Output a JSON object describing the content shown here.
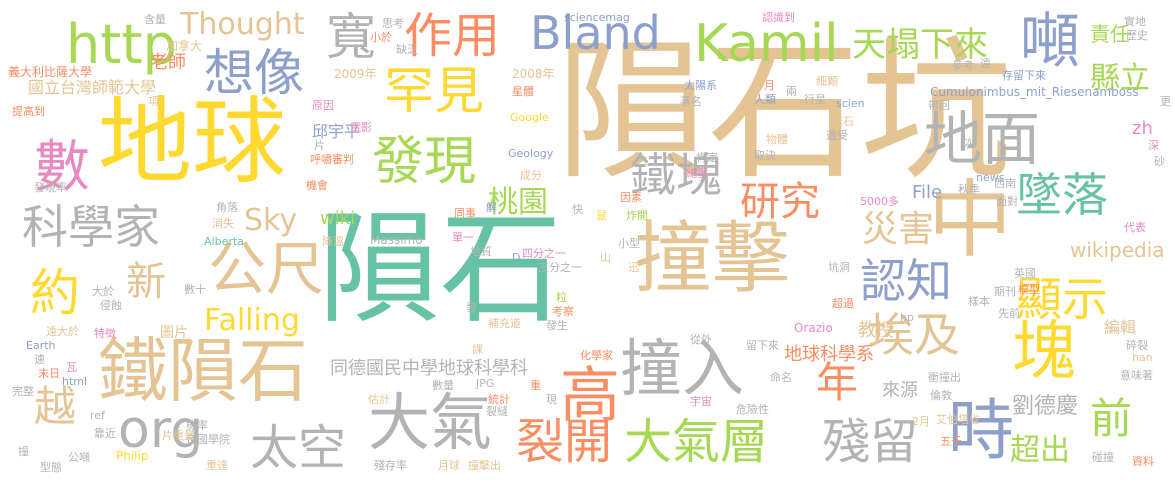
{
  "words": [
    {
      "text": "隕石",
      "color": "#66c2a5"
    },
    {
      "text": "隕石坑",
      "color": "#e5c494"
    },
    {
      "text": "地球",
      "color": "#ffd92f"
    },
    {
      "text": "撞擊",
      "color": "#e5c494"
    },
    {
      "text": "中",
      "color": "#e5c494"
    },
    {
      "text": "鐵隕石",
      "color": "#e5c494"
    },
    {
      "text": "撞入",
      "color": "#b3b3b3"
    },
    {
      "text": "大氣",
      "color": "#b3b3b3"
    },
    {
      "text": "時",
      "color": "#8da0cb"
    },
    {
      "text": "塊",
      "color": "#ffd92f"
    },
    {
      "text": "高",
      "color": "#fc8d62"
    },
    {
      "text": "公尺",
      "color": "#e5c494"
    },
    {
      "text": "http",
      "color": "#a6d854"
    },
    {
      "text": "Kamil",
      "color": "#a6d854"
    },
    {
      "text": "Bland",
      "color": "#8da0cb"
    },
    {
      "text": "數",
      "color": "#e78ac3"
    },
    {
      "text": "約",
      "color": "#ffd92f"
    },
    {
      "text": "org",
      "color": "#b3b3b3"
    },
    {
      "text": "地面",
      "color": "#b3b3b3"
    },
    {
      "text": "發現",
      "color": "#a6d854"
    },
    {
      "text": "罕見",
      "color": "#ffd92f"
    },
    {
      "text": "想像",
      "color": "#8da0cb"
    },
    {
      "text": "作用",
      "color": "#fc8d62"
    },
    {
      "text": "噸",
      "color": "#8da0cb"
    },
    {
      "text": "寬",
      "color": "#b3b3b3"
    },
    {
      "text": "太空",
      "color": "#b3b3b3"
    },
    {
      "text": "裂開",
      "color": "#fc8d62"
    },
    {
      "text": "大氣層",
      "color": "#a6d854"
    },
    {
      "text": "殘留",
      "color": "#b3b3b3"
    },
    {
      "text": "鐵塊",
      "color": "#b3b3b3"
    },
    {
      "text": "墜落",
      "color": "#66c2a5"
    },
    {
      "text": "顯示",
      "color": "#ffd92f"
    },
    {
      "text": "埃及",
      "color": "#e5c494"
    },
    {
      "text": "認知",
      "color": "#8da0cb"
    },
    {
      "text": "科學家",
      "color": "#b3b3b3"
    },
    {
      "text": "研究",
      "color": "#fc8d62"
    },
    {
      "text": "新",
      "color": "#e5c494"
    },
    {
      "text": "越",
      "color": "#e5c494"
    },
    {
      "text": "年",
      "color": "#fc8d62"
    },
    {
      "text": "前",
      "color": "#a6d854"
    },
    {
      "text": "天塌下來",
      "color": "#a6d854"
    },
    {
      "text": "災害",
      "color": "#e5c494"
    },
    {
      "text": "Thought",
      "color": "#e5c494"
    },
    {
      "text": "縣立",
      "color": "#a6d854"
    },
    {
      "text": "責任",
      "color": "#a6d854"
    },
    {
      "text": "桃園",
      "color": "#a6d854"
    },
    {
      "text": "Sky",
      "color": "#e5c494"
    },
    {
      "text": "Falling",
      "color": "#ffd92f"
    },
    {
      "text": "超出",
      "color": "#a6d854"
    },
    {
      "text": "劉德慶",
      "color": "#b3b3b3"
    },
    {
      "text": "國立台灣師範大學",
      "color": "#e5c494"
    },
    {
      "text": "同德國民中學地球科學科",
      "color": "#b3b3b3"
    },
    {
      "text": "地球科學系",
      "color": "#fc8d62"
    },
    {
      "text": "老師",
      "color": "#fc8d62"
    },
    {
      "text": "教授",
      "color": "#e5c494"
    },
    {
      "text": "來源",
      "color": "#b3b3b3"
    },
    {
      "text": "邱宇平",
      "color": "#8da0cb"
    },
    {
      "text": "wiki",
      "color": "#a6d854"
    },
    {
      "text": "wikipedia",
      "color": "#e5c494"
    },
    {
      "text": "File",
      "color": "#8da0cb"
    },
    {
      "text": "zh",
      "color": "#e78ac3"
    },
    {
      "text": "Cumulonimbus_mit_Riesenamboss",
      "color": "#8da0cb"
    },
    {
      "text": "sciencemag",
      "color": "#8da0cb"
    },
    {
      "text": "Geology",
      "color": "#8da0cb"
    },
    {
      "text": "Google",
      "color": "#ffd92f"
    },
    {
      "text": "2008年",
      "color": "#e5c494"
    },
    {
      "text": "2009年",
      "color": "#e5c494"
    },
    {
      "text": "加拿大",
      "color": "#e5c494"
    },
    {
      "text": "義大利比薩大學",
      "color": "#fc8d62"
    },
    {
      "text": "圖片",
      "color": "#e5c494"
    },
    {
      "text": "編輯",
      "color": "#e5c494"
    },
    {
      "text": "Massimo",
      "color": "#b3b3b3"
    },
    {
      "text": "Alberta",
      "color": "#66c2a5"
    },
    {
      "text": "Orazio",
      "color": "#e78ac3"
    },
    {
      "text": "Philip",
      "color": "#ffd92f"
    },
    {
      "text": "Earth",
      "color": "#8da0cb"
    },
    {
      "text": "html",
      "color": "#8da0cb"
    },
    {
      "text": "JPG",
      "color": "#b3b3b3"
    },
    {
      "text": "news",
      "color": "#8da0cb"
    },
    {
      "text": "scien",
      "color": "#8da0cb"
    },
    {
      "text": "ref",
      "color": "#b3b3b3"
    },
    {
      "text": "hp",
      "color": "#b3b3b3"
    },
    {
      "text": "han",
      "color": "#e5c494"
    },
    {
      "text": "D",
      "color": "#8da0cb"
    },
    {
      "text": "5000多",
      "color": "#e78ac3"
    },
    {
      "text": "含量",
      "color": "#b3b3b3"
    },
    {
      "text": "思考",
      "color": "#b3b3b3"
    },
    {
      "text": "小於",
      "color": "#fc8d62"
    },
    {
      "text": "缺乏",
      "color": "#b3b3b3"
    },
    {
      "text": "認識到",
      "color": "#e78ac3"
    },
    {
      "text": "實地",
      "color": "#b3b3b3"
    },
    {
      "text": "歷史",
      "color": "#b3b3b3"
    },
    {
      "text": "參考",
      "color": "#b3b3b3"
    },
    {
      "text": "遠",
      "color": "#b3b3b3"
    },
    {
      "text": "存留下來",
      "color": "#8da0cb"
    },
    {
      "text": "太陽系",
      "color": "#8da0cb"
    },
    {
      "text": "細顆",
      "color": "#e5c494"
    },
    {
      "text": "月",
      "color": "#fc8d62"
    },
    {
      "text": "兩",
      "color": "#b3b3b3"
    },
    {
      "text": "人類",
      "color": "#8da0cb"
    },
    {
      "text": "行星",
      "color": "#b3b3b3"
    },
    {
      "text": "著名",
      "color": "#b3b3b3"
    },
    {
      "text": "星體",
      "color": "#fc8d62"
    },
    {
      "text": "項",
      "color": "#e5c494"
    },
    {
      "text": "原因",
      "color": "#e78ac3"
    },
    {
      "text": "電影",
      "color": "#e78ac3"
    },
    {
      "text": "提高到",
      "color": "#fc8d62"
    },
    {
      "text": "片",
      "color": "#b3b3b3"
    },
    {
      "text": "呼嘯審判",
      "color": "#fc8d62"
    },
    {
      "text": "發現率",
      "color": "#b3b3b3"
    },
    {
      "text": "成分",
      "color": "#e5c494"
    },
    {
      "text": "機會",
      "color": "#fc8d62"
    },
    {
      "text": "降溫",
      "color": "#e5c494"
    },
    {
      "text": "角落",
      "color": "#b3b3b3"
    },
    {
      "text": "消失",
      "color": "#e5c494"
    },
    {
      "text": "同事",
      "color": "#fc8d62"
    },
    {
      "text": "解",
      "color": "#8da0cb"
    },
    {
      "text": "快",
      "color": "#b3b3b3"
    },
    {
      "text": "鼠",
      "color": "#ffd92f"
    },
    {
      "text": "因素",
      "color": "#fc8d62"
    },
    {
      "text": "炸開",
      "color": "#a6d854"
    },
    {
      "text": "總重",
      "color": "#e78ac3"
    },
    {
      "text": "物體",
      "color": "#e5c494"
    },
    {
      "text": "取決",
      "color": "#b3b3b3"
    },
    {
      "text": "肯定",
      "color": "#b3b3b3"
    },
    {
      "text": "遭受",
      "color": "#b3b3b3"
    },
    {
      "text": "岩石",
      "color": "#e5c494"
    },
    {
      "text": "帶回",
      "color": "#b3b3b3"
    },
    {
      "text": "次",
      "color": "#b3b3b3"
    },
    {
      "text": "更",
      "color": "#b3b3b3"
    },
    {
      "text": "深",
      "color": "#e78ac3"
    },
    {
      "text": "砂",
      "color": "#b3b3b3"
    },
    {
      "text": "秋季",
      "color": "#b3b3b3"
    },
    {
      "text": "西南",
      "color": "#b3b3b3"
    },
    {
      "text": "面對",
      "color": "#b3b3b3"
    },
    {
      "text": "代表",
      "color": "#e78ac3"
    },
    {
      "text": "單一",
      "color": "#e78ac3"
    },
    {
      "text": "地質",
      "color": "#b3b3b3"
    },
    {
      "text": "四分之一",
      "color": "#e78ac3"
    },
    {
      "text": "三分之一",
      "color": "#b3b3b3"
    },
    {
      "text": "山",
      "color": "#e5c494"
    },
    {
      "text": "小型",
      "color": "#b3b3b3"
    },
    {
      "text": "迅",
      "color": "#e5c494"
    },
    {
      "text": "坑洞",
      "color": "#b3b3b3"
    },
    {
      "text": "英國",
      "color": "#b3b3b3"
    },
    {
      "text": "模型",
      "color": "#fc8d62"
    },
    {
      "text": "期刊",
      "color": "#b3b3b3"
    },
    {
      "text": "樣本",
      "color": "#b3b3b3"
    },
    {
      "text": "超過",
      "color": "#fc8d62"
    },
    {
      "text": "先前",
      "color": "#b3b3b3"
    },
    {
      "text": "數十",
      "color": "#b3b3b3"
    },
    {
      "text": "大於",
      "color": "#b3b3b3"
    },
    {
      "text": "侵蝕",
      "color": "#b3b3b3"
    },
    {
      "text": "遠大於",
      "color": "#e5c494"
    },
    {
      "text": "特徵",
      "color": "#e78ac3"
    },
    {
      "text": "速",
      "color": "#b3b3b3"
    },
    {
      "text": "末日",
      "color": "#fc8d62"
    },
    {
      "text": "瓦",
      "color": "#e78ac3"
    },
    {
      "text": "完整",
      "color": "#b3b3b3"
    },
    {
      "text": "機率",
      "color": "#b3b3b3"
    },
    {
      "text": "靠近",
      "color": "#b3b3b3"
    },
    {
      "text": "帝國學院",
      "color": "#b3b3b3"
    },
    {
      "text": "撞",
      "color": "#b3b3b3"
    },
    {
      "text": "型態",
      "color": "#b3b3b3"
    },
    {
      "text": "公噸",
      "color": "#b3b3b3"
    },
    {
      "text": "重達",
      "color": "#e5c494"
    },
    {
      "text": "殘存率",
      "color": "#b3b3b3"
    },
    {
      "text": "月球",
      "color": "#e5c494"
    },
    {
      "text": "撞擊出",
      "color": "#e5c494"
    },
    {
      "text": "估計",
      "color": "#e5c494"
    },
    {
      "text": "數量",
      "color": "#b3b3b3"
    },
    {
      "text": "統計",
      "color": "#fc8d62"
    },
    {
      "text": "裂縫",
      "color": "#b3b3b3"
    },
    {
      "text": "化學家",
      "color": "#fc8d62"
    },
    {
      "text": "宇宙",
      "color": "#e78ac3"
    },
    {
      "text": "危險性",
      "color": "#b3b3b3"
    },
    {
      "text": "命名",
      "color": "#b3b3b3"
    },
    {
      "text": "衝撞出",
      "color": "#b3b3b3"
    },
    {
      "text": "倫敦",
      "color": "#b3b3b3"
    },
    {
      "text": "2月",
      "color": "#e5c494"
    },
    {
      "text": "艾伯塔省",
      "color": "#e5c494"
    },
    {
      "text": "五千",
      "color": "#fc8d62"
    },
    {
      "text": "碰撞",
      "color": "#b3b3b3"
    },
    {
      "text": "資料",
      "color": "#fc8d62"
    },
    {
      "text": "碎裂",
      "color": "#b3b3b3"
    },
    {
      "text": "意味著",
      "color": "#b3b3b3"
    },
    {
      "text": "從外",
      "color": "#b3b3b3"
    },
    {
      "text": "留下來",
      "color": "#b3b3b3"
    },
    {
      "text": "發",
      "color": "#b3b3b3"
    },
    {
      "text": "補充道",
      "color": "#e5c494"
    },
    {
      "text": "粒",
      "color": "#a6d854"
    },
    {
      "text": "考察",
      "color": "#fc8d62"
    },
    {
      "text": "發生",
      "color": "#b3b3b3"
    },
    {
      "text": "課",
      "color": "#e5c494"
    },
    {
      "text": "重",
      "color": "#fc8d62"
    },
    {
      "text": "現",
      "color": "#b3b3b3"
    },
    {
      "text": "片重量",
      "color": "#e5c494"
    }
  ]
}
